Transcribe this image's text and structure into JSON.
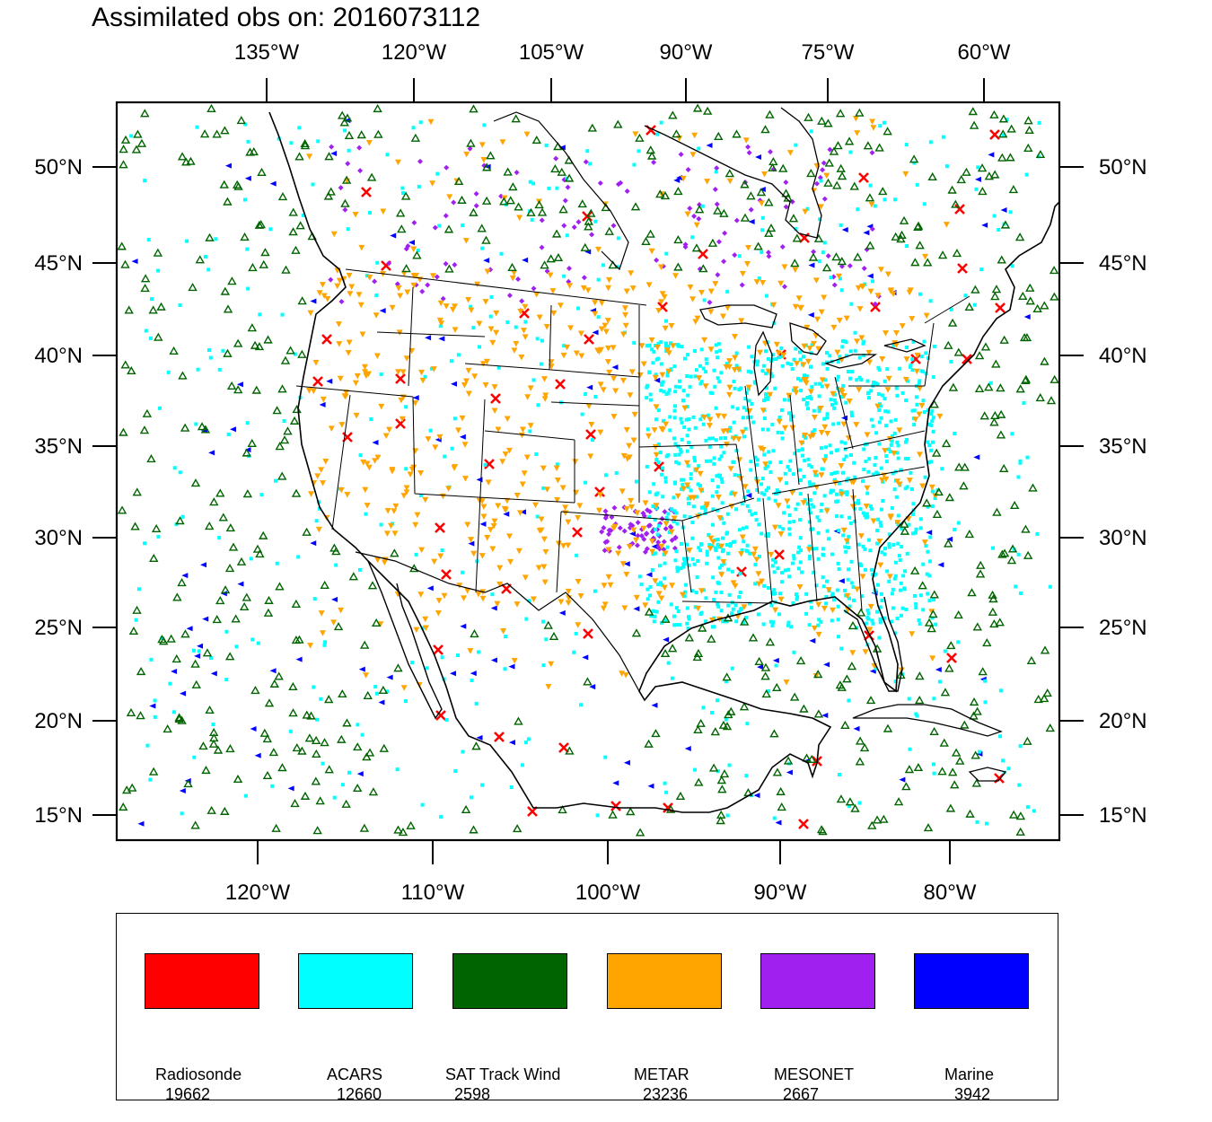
{
  "title": "Assimilated obs on: 2016073112",
  "top_axis_labels": [
    "135°W",
    "120°W",
    "105°W",
    "90°W",
    "75°W",
    "60°W"
  ],
  "bottom_axis_labels": [
    "120°W",
    "110°W",
    "100°W",
    "90°W",
    "80°W"
  ],
  "left_axis_labels": [
    "50°N",
    "45°N",
    "40°N",
    "35°N",
    "30°N",
    "25°N",
    "20°N",
    "15°N"
  ],
  "right_axis_labels": [
    "50°N",
    "45°N",
    "40°N",
    "35°N",
    "30°N",
    "25°N",
    "20°N",
    "15°N"
  ],
  "legend": [
    {
      "name": "Radiosonde",
      "count": "19662",
      "color": "#ff0000"
    },
    {
      "name": "ACARS",
      "count": "12660",
      "color": "#00ffff"
    },
    {
      "name": "SAT Track Wind",
      "count": "2598",
      "color": "#006400"
    },
    {
      "name": "METAR",
      "count": "23236",
      "color": "#ffa500"
    },
    {
      "name": "MESONET",
      "count": "2667",
      "color": "#a020f0"
    },
    {
      "name": "Marine",
      "count": "3942",
      "color": "#0000ff"
    }
  ],
  "colors": {
    "radiosonde": "#ff0000",
    "acars": "#00ffff",
    "sat_wind": "#006400",
    "metar": "#ffa500",
    "mesonet": "#a020f0",
    "marine": "#0000ff",
    "coastline": "#000000"
  }
}
